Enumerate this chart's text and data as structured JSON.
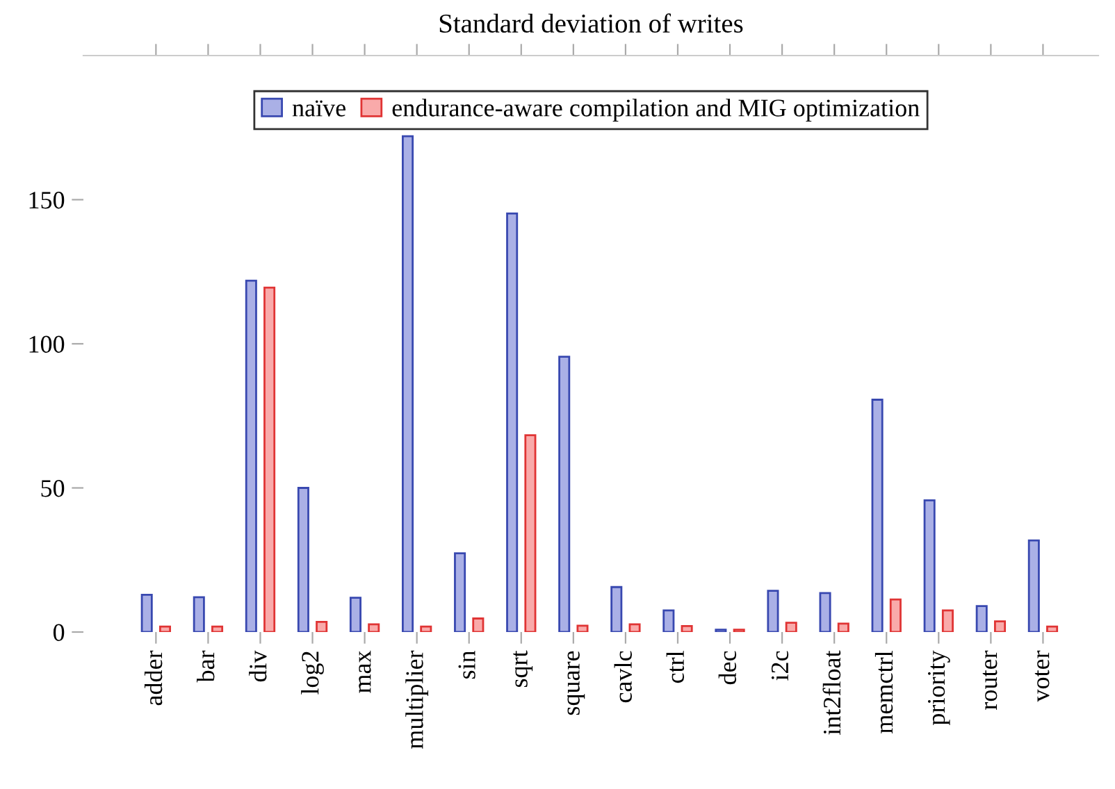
{
  "chart_data": {
    "type": "bar",
    "title": "Standard deviation of writes",
    "categories": [
      "adder",
      "bar",
      "div",
      "log2",
      "max",
      "multiplier",
      "sin",
      "sqrt",
      "square",
      "cavlc",
      "ctrl",
      "dec",
      "i2c",
      "int2float",
      "memctrl",
      "priority",
      "router",
      "voter"
    ],
    "series": [
      {
        "name": "naïve",
        "color": "#aab0e6",
        "values": [
          12.9,
          12.1,
          121.9,
          50.0,
          11.9,
          172,
          27.3,
          145.2,
          95.5,
          15.6,
          7.5,
          0.8,
          14.3,
          13.5,
          80.6,
          45.7,
          9.0,
          31.8
        ]
      },
      {
        "name": "endurance-aware compilation and MIG optimization",
        "color": "#f9aaaa",
        "values": [
          1.9,
          1.9,
          119.5,
          3.5,
          2.7,
          1.9,
          4.7,
          68.3,
          2.2,
          2.7,
          2.1,
          0.8,
          3.2,
          2.9,
          11.3,
          7.5,
          3.7,
          1.9
        ]
      }
    ],
    "ylim": [
      0,
      200
    ],
    "yticks": [
      0,
      50,
      100,
      150
    ],
    "grid": false,
    "legend": "top"
  }
}
